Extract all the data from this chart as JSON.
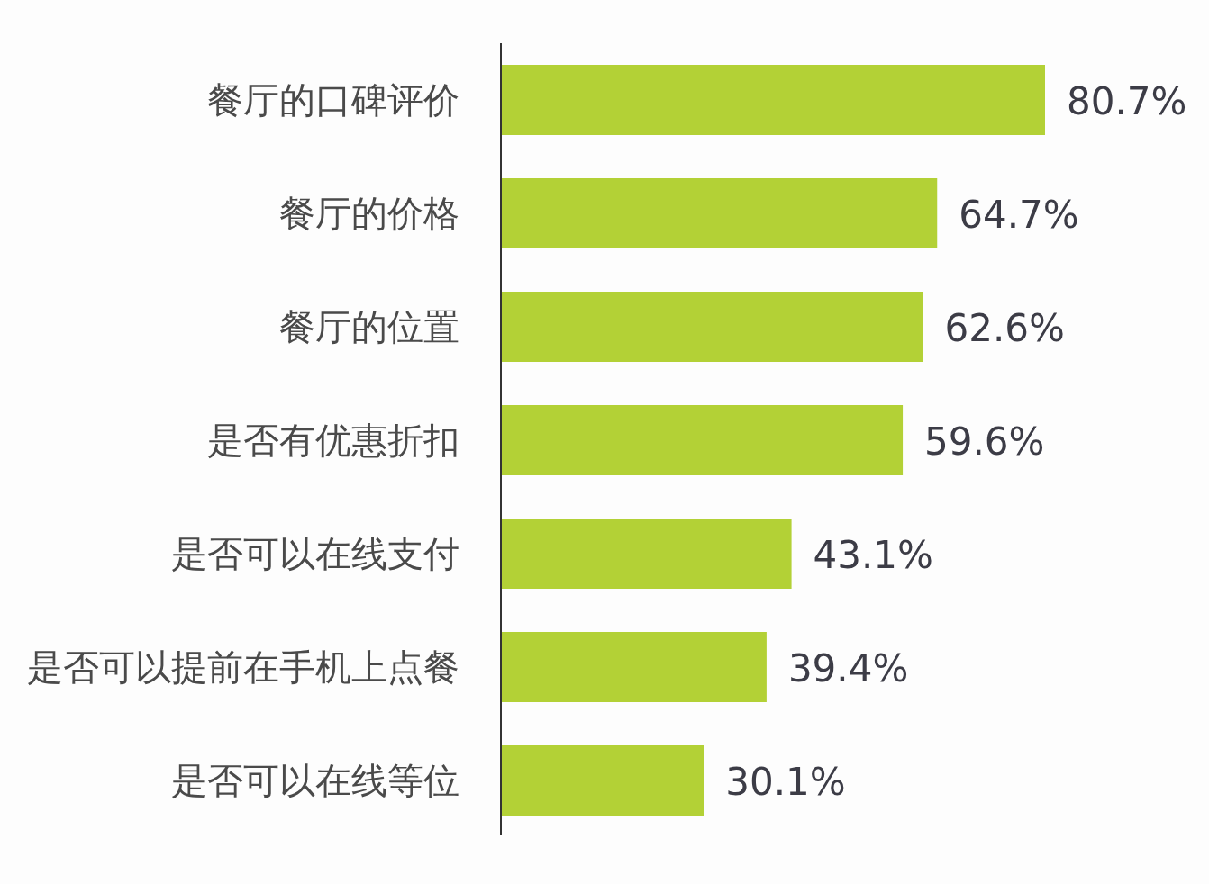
{
  "chart_data": {
    "type": "bar",
    "orientation": "horizontal",
    "categories": [
      "餐厅的口碑评价",
      "餐厅的价格",
      "餐厅的位置",
      "是否有优惠折扣",
      "是否可以在线支付",
      "是否可以提前在手机上点餐",
      "是否可以在线等位"
    ],
    "values": [
      80.7,
      64.7,
      62.6,
      59.6,
      43.1,
      39.4,
      30.1
    ],
    "value_labels": [
      "80.7%",
      "64.7%",
      "62.6%",
      "59.6%",
      "43.1%",
      "39.4%",
      "30.1%"
    ],
    "color": "#b3d136"
  }
}
